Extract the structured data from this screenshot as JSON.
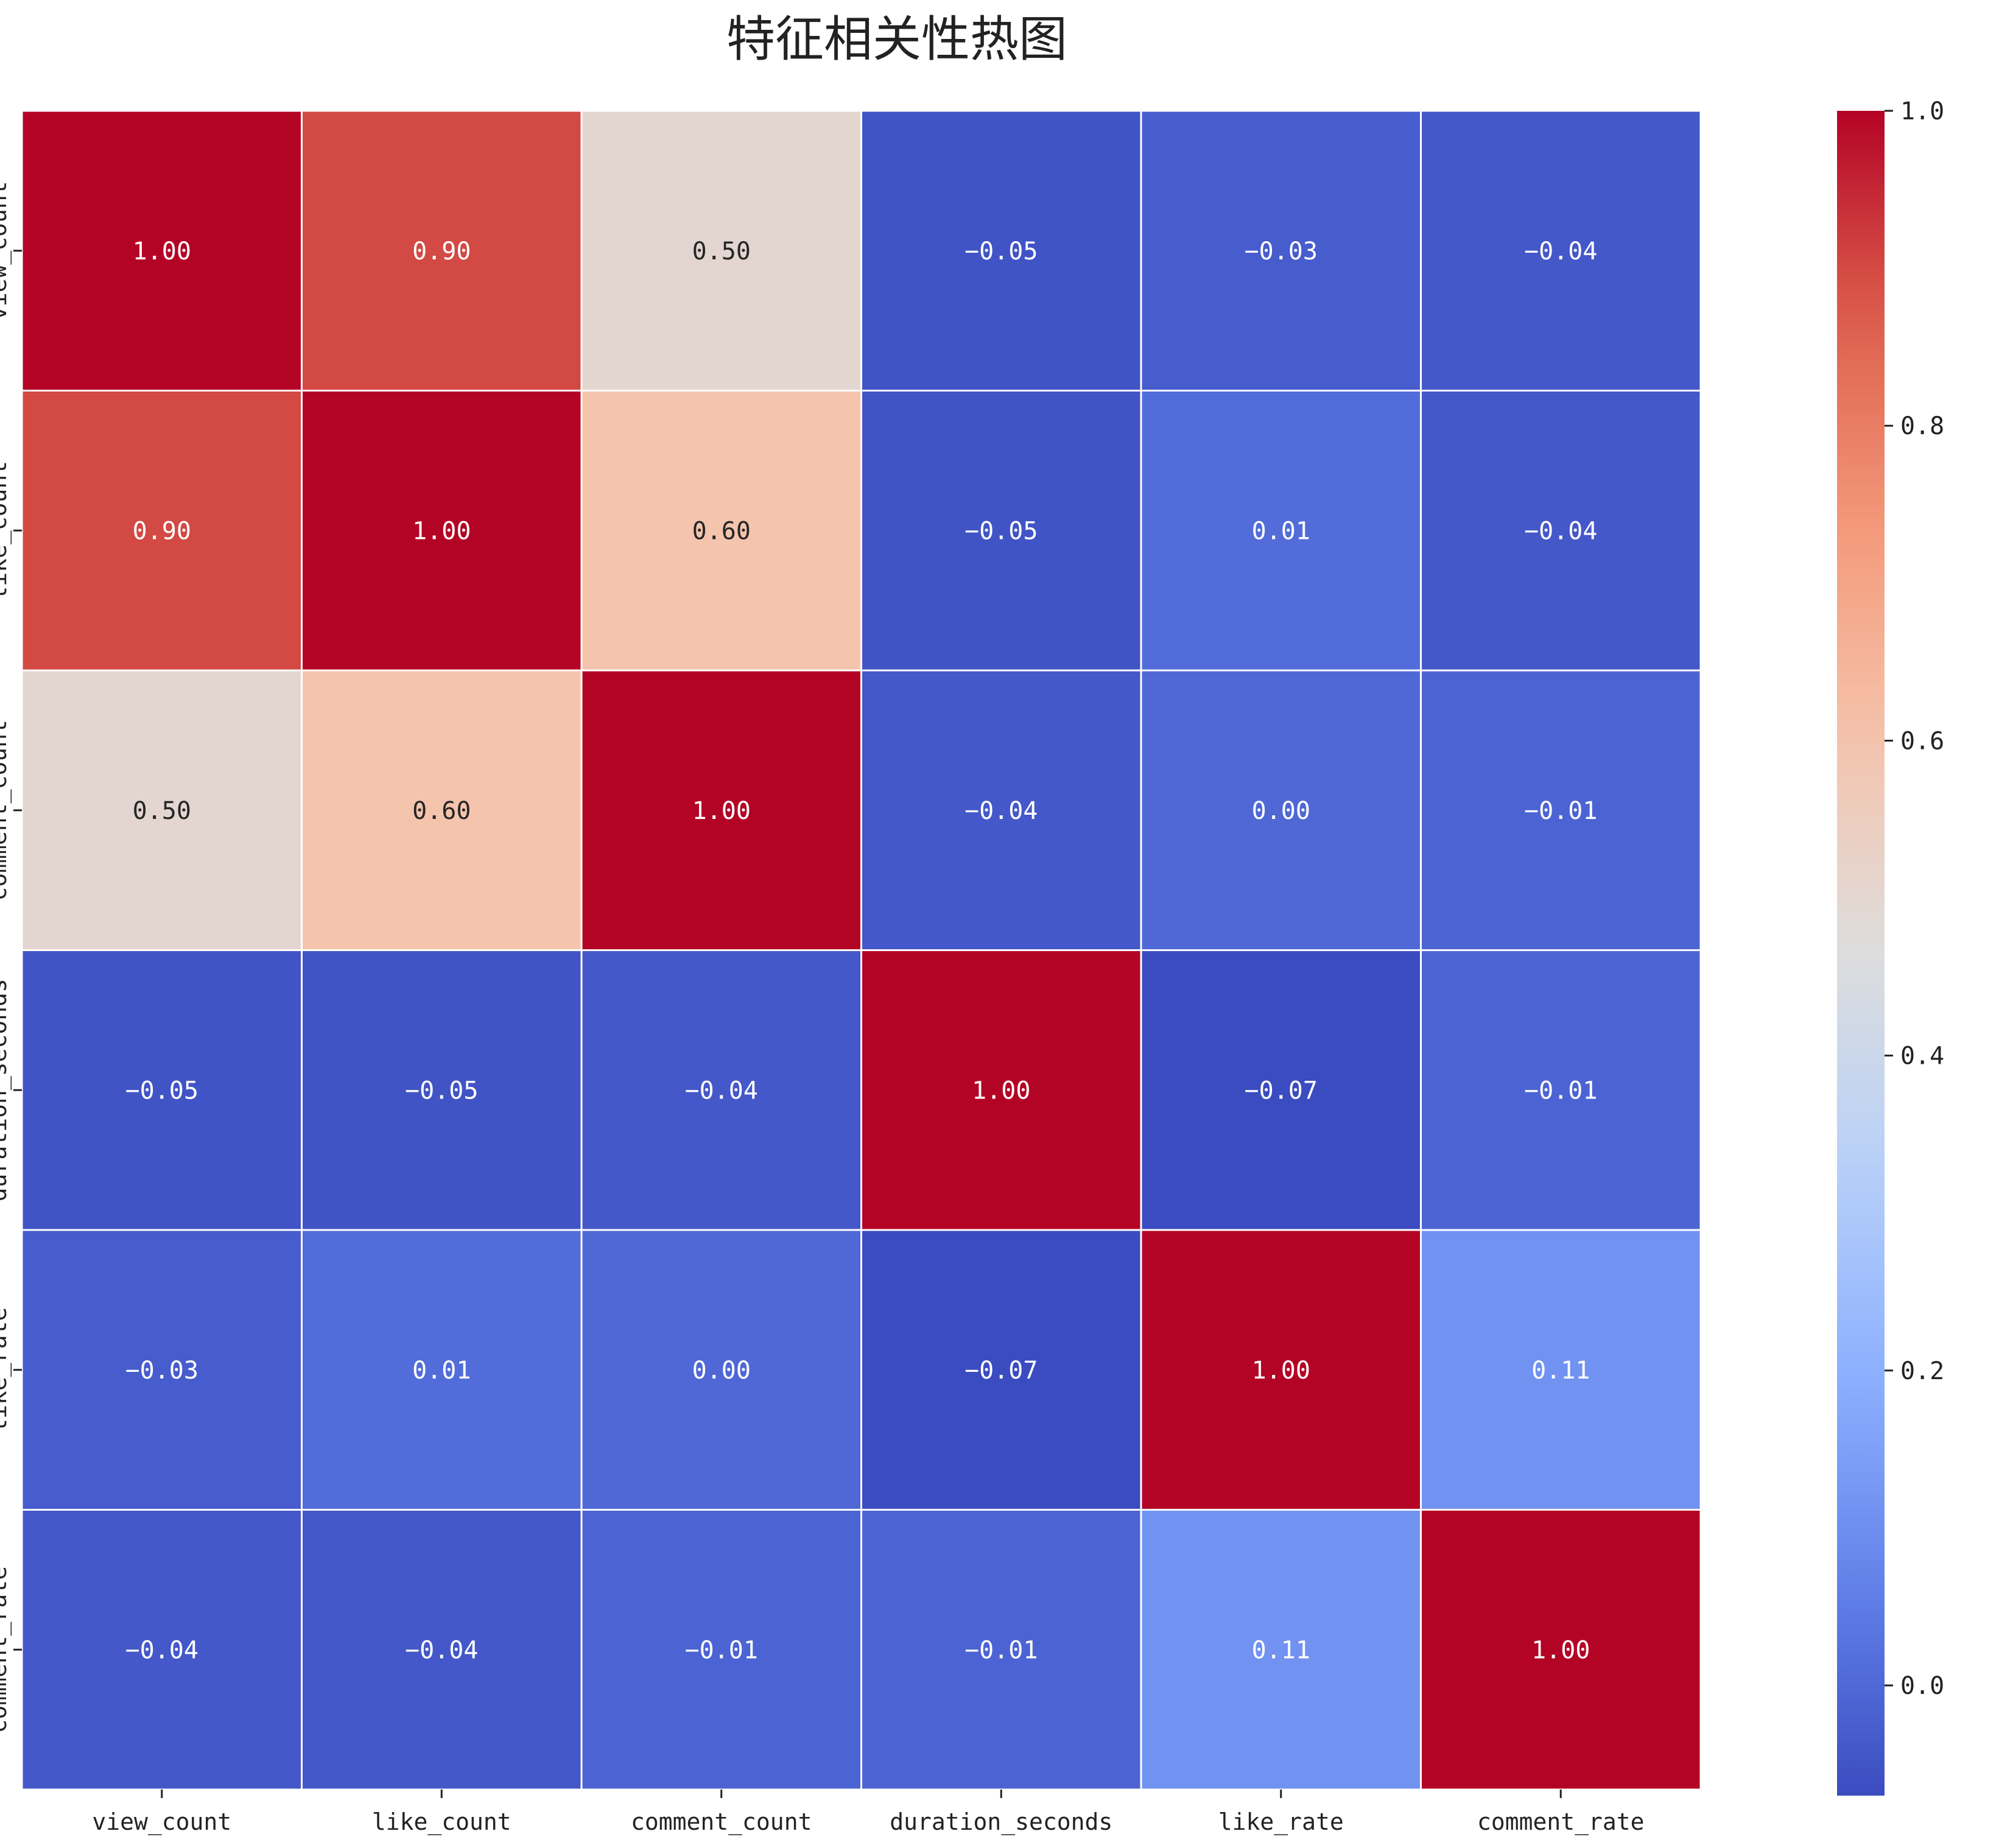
{
  "chart_data": {
    "type": "heatmap",
    "title": "特征相关性热图",
    "xlabel": "",
    "ylabel": "",
    "x_categories": [
      "view_count",
      "like_count",
      "comment_count",
      "duration_seconds",
      "like_rate",
      "comment_rate"
    ],
    "y_categories": [
      "view_count",
      "like_count",
      "comment_count",
      "duration_seconds",
      "like_rate",
      "comment_rate"
    ],
    "values": [
      [
        1.0,
        0.9,
        0.5,
        -0.05,
        -0.03,
        -0.04
      ],
      [
        0.9,
        1.0,
        0.6,
        -0.05,
        0.01,
        -0.04
      ],
      [
        0.5,
        0.6,
        1.0,
        -0.04,
        0.0,
        -0.01
      ],
      [
        -0.05,
        -0.05,
        -0.04,
        1.0,
        -0.07,
        -0.01
      ],
      [
        -0.03,
        0.01,
        0.0,
        -0.07,
        1.0,
        0.11
      ],
      [
        -0.04,
        -0.04,
        -0.01,
        -0.01,
        0.11,
        1.0
      ]
    ],
    "value_labels": [
      [
        "1.00",
        "0.90",
        "0.50",
        "−0.05",
        "−0.03",
        "−0.04"
      ],
      [
        "0.90",
        "1.00",
        "0.60",
        "−0.05",
        "0.01",
        "−0.04"
      ],
      [
        "0.50",
        "0.60",
        "1.00",
        "−0.04",
        "0.00",
        "−0.01"
      ],
      [
        "−0.05",
        "−0.05",
        "−0.04",
        "1.00",
        "−0.07",
        "−0.01"
      ],
      [
        "−0.03",
        "0.01",
        "0.00",
        "−0.07",
        "1.00",
        "0.11"
      ],
      [
        "−0.04",
        "−0.04",
        "−0.01",
        "−0.01",
        "0.11",
        "1.00"
      ]
    ],
    "colormap": "coolwarm",
    "vmin": -0.07,
    "vmax": 1.0,
    "colorbar": {
      "ticks": [
        0.0,
        0.2,
        0.4,
        0.6,
        0.8,
        1.0
      ],
      "tick_labels": [
        "0.0",
        "0.2",
        "0.4",
        "0.6",
        "0.8",
        "1.0"
      ],
      "placement": "right"
    },
    "grid_line_color": "#ffffff",
    "legend": "colorbar-right"
  }
}
